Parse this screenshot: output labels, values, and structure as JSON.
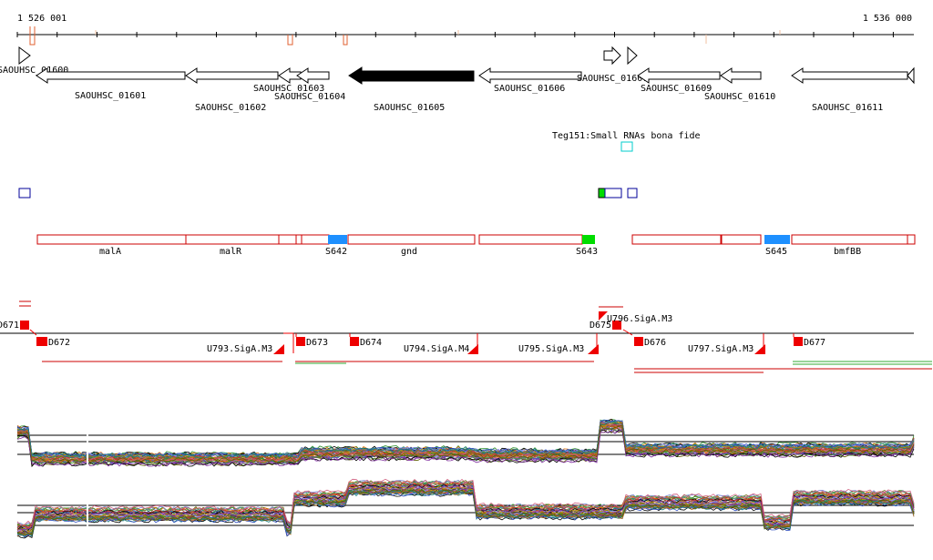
{
  "ruler": {
    "start_label": "1 526 001",
    "end_label": "1 536 000"
  },
  "colors": {
    "gene_fill": "#ffffff",
    "gene_stroke": "#000000",
    "highlight_gene": "#000000",
    "feature_stroke": "#cc0000",
    "srna_blue": "#1e90ff",
    "srna_green": "#00dd00",
    "promoter_red": "#ee0000",
    "teg_cyan": "#00cccc",
    "navy": "#000099"
  },
  "genes": [
    {
      "label": "SAOUHSC_01600"
    },
    {
      "label": "SAOUHSC_01601"
    },
    {
      "label": "SAOUHSC_01602"
    },
    {
      "label": "SAOUHSC_01603"
    },
    {
      "label": "SAOUHSC_01604"
    },
    {
      "label": "SAOUHSC_01605"
    },
    {
      "label": "SAOUHSC_01606"
    },
    {
      "label": "SAOUHSC_01607"
    },
    {
      "label": "SAOUHSC_01609"
    },
    {
      "label": "SAOUHSC_01610"
    },
    {
      "label": "SAOUHSC_01611"
    }
  ],
  "teg_label": "Teg151:Small RNAs bona fide",
  "features": [
    {
      "label": "malA"
    },
    {
      "label": "malR"
    },
    {
      "label": "S642"
    },
    {
      "label": "gnd"
    },
    {
      "label": "S643"
    },
    {
      "label": "S645"
    },
    {
      "label": "bmfBB"
    }
  ],
  "promoters": [
    {
      "label": "D671"
    },
    {
      "label": "D672"
    },
    {
      "label": "U793.SigA.M3"
    },
    {
      "label": "D673"
    },
    {
      "label": "D674"
    },
    {
      "label": "U794.SigA.M4"
    },
    {
      "label": "U795.SigA.M3"
    },
    {
      "label": "D675"
    },
    {
      "label": "U796.SigA.M3"
    },
    {
      "label": "D676"
    },
    {
      "label": "U797.SigA.M3"
    },
    {
      "label": "D677"
    }
  ]
}
